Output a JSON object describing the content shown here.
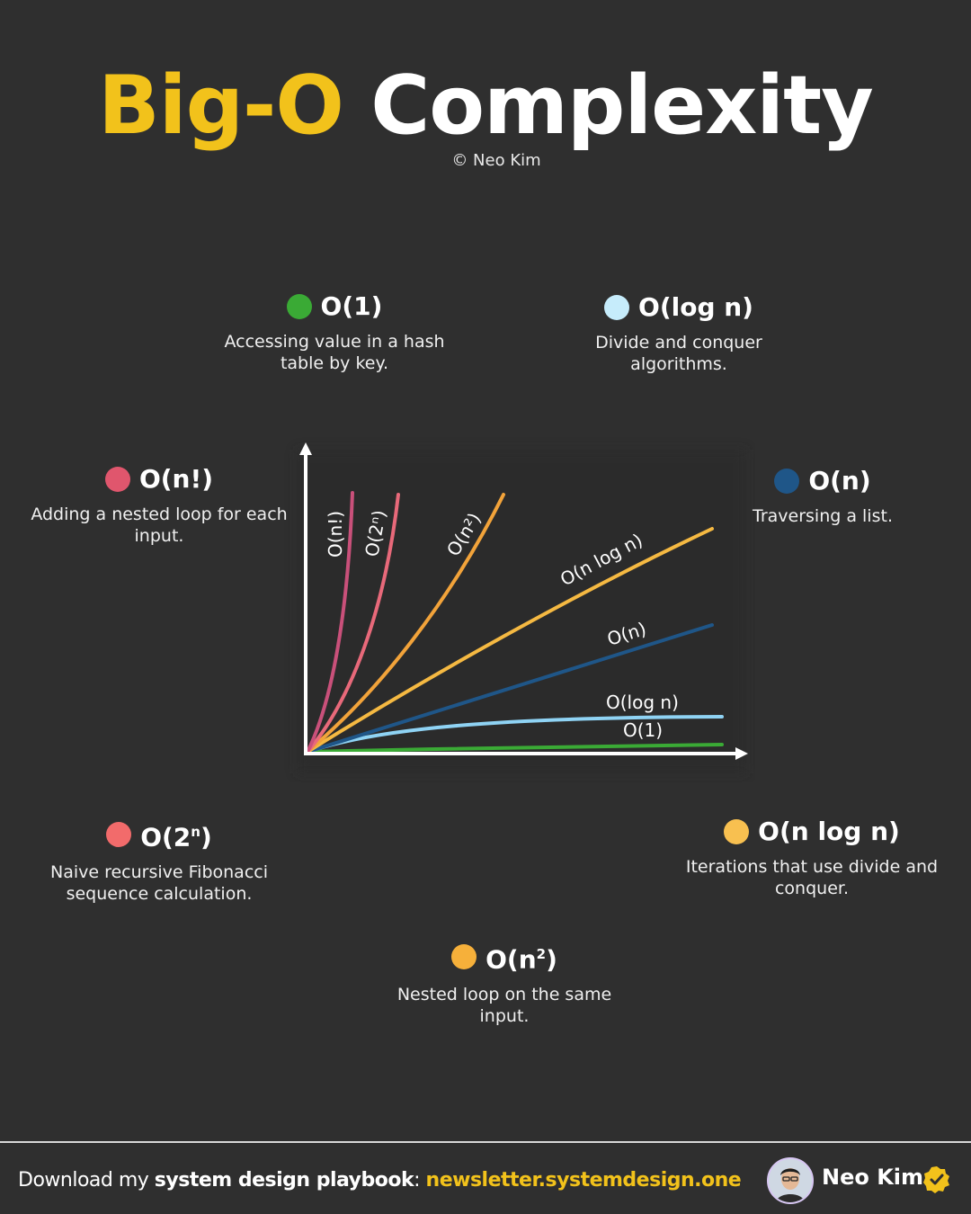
{
  "title": {
    "highlight": "Big-O",
    "rest": "Complexity"
  },
  "byline": "© Neo Kim",
  "cards": {
    "o1": {
      "label": "O(1)",
      "desc": "Accessing value in a hash table by key.",
      "color": "#3aaa35"
    },
    "ologn": {
      "label": "O(log n)",
      "desc": "Divide and conquer algorithms.",
      "color": "#c6ecfb"
    },
    "ofact": {
      "label": "O(n!)",
      "desc": "Adding a nested loop for each input.",
      "color": "#e0566d"
    },
    "on": {
      "label": "O(n)",
      "desc": "Traversing a list.",
      "color": "#1f5688"
    },
    "o2n": {
      "label_base": "O(2",
      "label_sup": "n",
      "label_end": ")",
      "desc": "Naive recursive Fibonacci sequence calculation.",
      "color": "#f26b6b"
    },
    "onlogn": {
      "label": "O(n log n)",
      "desc": "Iterations that use divide and conquer.",
      "color": "#f8c050"
    },
    "on2": {
      "label_base": "O(n",
      "label_sup": "2",
      "label_end": ")",
      "desc": "Nested loop on the same input.",
      "color": "#f6b03a"
    }
  },
  "chart_data": {
    "type": "line",
    "title": "",
    "xlabel": "",
    "ylabel": "",
    "series": [
      {
        "name": "O(1)",
        "color": "#3aaa35"
      },
      {
        "name": "O(log n)",
        "color": "#8fd3f4"
      },
      {
        "name": "O(n)",
        "color": "#1f5688"
      },
      {
        "name": "O(n log n)",
        "color": "#f5b942"
      },
      {
        "name": "O(n²)",
        "color": "#f2a33a"
      },
      {
        "name": "O(2ⁿ)",
        "color": "#e8697a"
      },
      {
        "name": "O(n!)",
        "color": "#c9507a"
      }
    ]
  },
  "footer": {
    "prefix": "Download my ",
    "strong": "system design playbook",
    "sep": ": ",
    "link": "newsletter.systemdesign.one",
    "author": "Neo Kim"
  }
}
